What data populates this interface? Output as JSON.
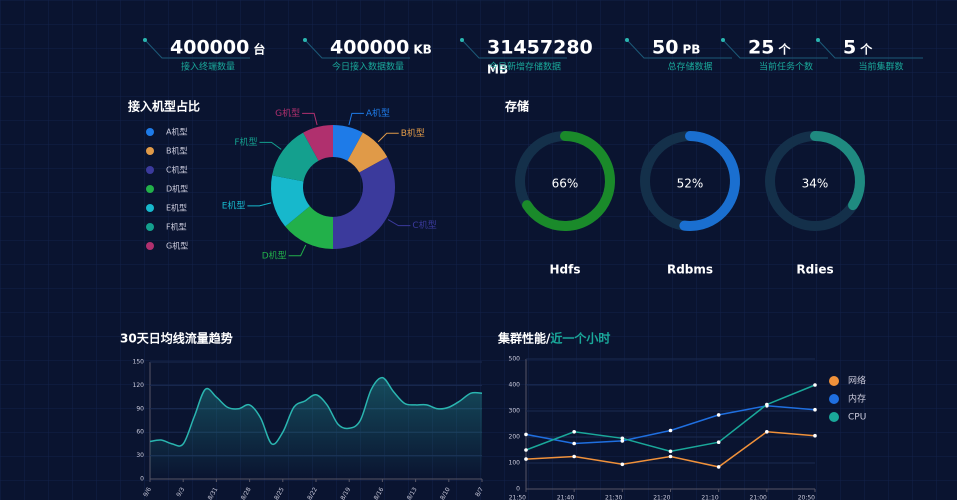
{
  "stats": [
    {
      "value": 400000,
      "unit": "台",
      "label": "接入终端数量"
    },
    {
      "value": 400000,
      "unit": "KB",
      "label": "今日接入数据数量"
    },
    {
      "value": 31457280,
      "unit": "MB",
      "label": "今日新增存储数据"
    },
    {
      "value": 50,
      "unit": "PB",
      "label": "总存储数据"
    },
    {
      "value": 25,
      "unit": "个",
      "label": "当前任务个数"
    },
    {
      "value": 5,
      "unit": "个",
      "label": "当前集群数"
    }
  ],
  "chart_data": [
    {
      "type": "donut",
      "title": "接入机型占比",
      "categories": [
        "A机型",
        "B机型",
        "C机型",
        "D机型",
        "E机型",
        "F机型",
        "G机型"
      ],
      "values": [
        8,
        9,
        33,
        14,
        14,
        14,
        8
      ],
      "colors": [
        "#1e7be8",
        "#e09a48",
        "#3b3a9c",
        "#22b04a",
        "#17b8cc",
        "#14a08e",
        "#b0306e"
      ]
    },
    {
      "type": "gauge",
      "title": "存储",
      "categories": [
        "Hdfs",
        "Rdbms",
        "Rdies"
      ],
      "values": [
        66,
        52,
        34
      ],
      "value_labels": [
        "66%",
        "52%",
        "34%"
      ],
      "colors": [
        "#1a8a2a",
        "#1a6fd0",
        "#1f8a80"
      ],
      "ylim": [
        0,
        100
      ]
    },
    {
      "type": "line",
      "title": "30天日均线流量趋势",
      "categories": [
        "9/6",
        null,
        null,
        "9/3",
        null,
        null,
        "8/31",
        null,
        null,
        "8/28",
        null,
        null,
        "8/25",
        null,
        null,
        "8/22",
        null,
        null,
        "8/19",
        null,
        null,
        "8/16",
        null,
        null,
        "8/13",
        null,
        null,
        "8/10",
        null,
        null,
        "8/7"
      ],
      "series": [
        {
          "name": null,
          "color": "#2ab5b0",
          "values": [
            48,
            50,
            45,
            45,
            80,
            115,
            105,
            92,
            90,
            95,
            78,
            45,
            60,
            92,
            100,
            108,
            95,
            70,
            65,
            75,
            115,
            130,
            112,
            97,
            95,
            95,
            90,
            92,
            100,
            110,
            110
          ]
        }
      ],
      "ylim": [
        0,
        150
      ],
      "yticks": [
        0,
        30,
        60,
        90,
        120,
        150
      ],
      "grid": true
    },
    {
      "type": "line",
      "title": "集群性能/",
      "subtitle": "近一个小时",
      "categories": [
        "21:50",
        "21:40",
        "21:30",
        "21:20",
        "21:10",
        "21:00",
        "20:50"
      ],
      "series": [
        {
          "name": "网络",
          "color": "#f0913a",
          "values": [
            115,
            125,
            95,
            125,
            85,
            220,
            205
          ]
        },
        {
          "name": "内存",
          "color": "#1f6fe0",
          "values": [
            210,
            175,
            185,
            225,
            285,
            320,
            305
          ]
        },
        {
          "name": "CPU",
          "color": "#1aa89a",
          "values": [
            150,
            220,
            195,
            145,
            180,
            325,
            400
          ]
        }
      ],
      "ylim": [
        0,
        500
      ],
      "yticks": [
        0,
        100,
        200,
        300,
        400,
        500
      ],
      "grid": true,
      "legend": "right"
    }
  ]
}
